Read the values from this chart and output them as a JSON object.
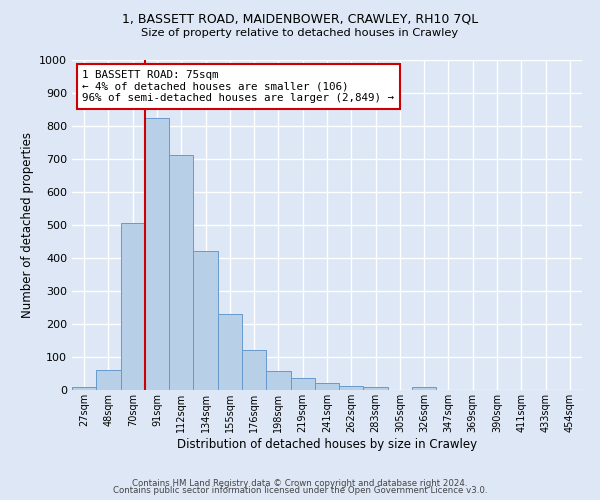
{
  "title1": "1, BASSETT ROAD, MAIDENBOWER, CRAWLEY, RH10 7QL",
  "title2": "Size of property relative to detached houses in Crawley",
  "xlabel": "Distribution of detached houses by size in Crawley",
  "ylabel": "Number of detached properties",
  "categories": [
    "27sqm",
    "48sqm",
    "70sqm",
    "91sqm",
    "112sqm",
    "134sqm",
    "155sqm",
    "176sqm",
    "198sqm",
    "219sqm",
    "241sqm",
    "262sqm",
    "283sqm",
    "305sqm",
    "326sqm",
    "347sqm",
    "369sqm",
    "390sqm",
    "411sqm",
    "433sqm",
    "454sqm"
  ],
  "values": [
    8,
    60,
    505,
    825,
    713,
    420,
    230,
    120,
    57,
    37,
    20,
    13,
    10,
    0,
    8,
    0,
    0,
    0,
    0,
    0,
    0
  ],
  "bar_color": "#b8cfe8",
  "bar_edge_color": "#6699cc",
  "bg_color": "#dde7f5",
  "grid_color": "#ffffff",
  "annotation_text_line1": "1 BASSETT ROAD: 75sqm",
  "annotation_text_line2": "← 4% of detached houses are smaller (106)",
  "annotation_text_line3": "96% of semi-detached houses are larger (2,849) →",
  "annotation_box_color": "#ffffff",
  "annotation_box_edge": "#cc0000",
  "vline_color": "#cc0000",
  "ylim": [
    0,
    1000
  ],
  "footer1": "Contains HM Land Registry data © Crown copyright and database right 2024.",
  "footer2": "Contains public sector information licensed under the Open Government Licence v3.0."
}
